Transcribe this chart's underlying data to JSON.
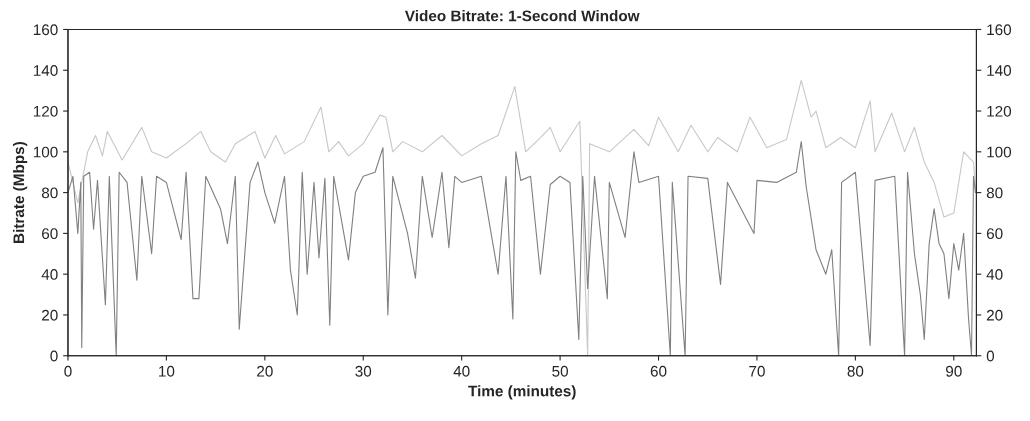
{
  "chart_data": {
    "type": "line",
    "title": "Video Bitrate: 1-Second Window",
    "xlabel": "Time (minutes)",
    "ylabel": "Bitrate (Mbps)",
    "xlim": [
      0,
      92.3
    ],
    "xticks": [
      0,
      10,
      20,
      30,
      40,
      50,
      60,
      70,
      80,
      90
    ],
    "ylim": [
      0,
      160
    ],
    "yticks": [
      0,
      20,
      40,
      60,
      80,
      100,
      120,
      140,
      160
    ],
    "y2lim": [
      0,
      160
    ],
    "y2ticks": [
      0,
      20,
      40,
      60,
      80,
      100,
      120,
      140,
      160
    ],
    "grid": false,
    "legend": false,
    "marker": "none",
    "line_style": "solid",
    "series": [
      {
        "color": "#c8c8c8",
        "x": [
          0,
          1,
          2,
          2.8,
          3.5,
          4,
          5.5,
          7.5,
          8.5,
          10,
          12,
          13.5,
          14.5,
          16,
          17,
          19,
          20,
          21.1,
          22,
          24,
          25.7,
          26.5,
          27.5,
          28.5,
          30,
          31.7,
          32.3,
          33,
          34,
          36,
          38,
          40,
          42,
          43.7,
          45.4,
          46.5,
          48,
          49,
          50,
          52,
          52.8,
          53,
          55,
          57.5,
          59,
          60,
          62,
          63.3,
          65,
          66,
          68,
          69.3,
          71,
          73,
          74.5,
          75.5,
          76,
          77,
          78.5,
          80,
          81.5,
          82,
          83.7,
          85,
          86,
          87,
          88,
          89,
          90,
          91,
          92,
          92.2
        ],
        "values": [
          95,
          75,
          100,
          108,
          98,
          110,
          96,
          112,
          100,
          97,
          104,
          110,
          100,
          95,
          104,
          110,
          97,
          108,
          99,
          105,
          122,
          100,
          105,
          98,
          104,
          118,
          117,
          100,
          105,
          100,
          108,
          98,
          104,
          108,
          132,
          100,
          107,
          112,
          100,
          115,
          0,
          104,
          100,
          111,
          103,
          117,
          100,
          113,
          100,
          107,
          100,
          117,
          102,
          106,
          135,
          117,
          120,
          102,
          107,
          102,
          125,
          100,
          119,
          100,
          112,
          95,
          85,
          68,
          70,
          100,
          95,
          82
        ]
      },
      {
        "color": "#808080",
        "x": [
          0,
          0.5,
          1.0,
          1.3,
          1.4,
          1.6,
          2.2,
          2.6,
          3,
          3.8,
          4.2,
          4.9,
          5.2,
          6,
          7,
          7.5,
          8.5,
          9,
          10,
          11.5,
          12,
          12.7,
          13.3,
          14,
          15.5,
          16.2,
          17,
          17.4,
          18.5,
          19.3,
          20,
          21,
          22,
          22.6,
          23.3,
          23.8,
          24.3,
          25,
          25.5,
          26.1,
          26.6,
          27,
          28.5,
          29.2,
          30,
          31.2,
          32,
          32.5,
          33,
          34.5,
          35.3,
          36,
          37,
          38,
          38.7,
          39.3,
          40,
          42,
          43.7,
          44.5,
          45.2,
          45.5,
          46,
          47,
          48,
          49,
          50,
          51,
          51.9,
          52.3,
          52.8,
          53.5,
          54.8,
          55,
          56.6,
          57.5,
          58,
          60,
          61.2,
          61.4,
          62.7,
          63,
          65,
          66.3,
          67,
          69.7,
          70,
          72,
          74,
          74.5,
          75,
          76,
          77,
          77.6,
          78.3,
          78.6,
          80,
          81.5,
          82,
          84,
          85,
          85.3,
          86,
          86.6,
          87,
          87.5,
          88,
          88.5,
          89,
          89.5,
          90,
          90.5,
          91,
          91.5,
          91.8,
          92,
          92.2
        ],
        "values": [
          80,
          88,
          60,
          85,
          4,
          88,
          90,
          62,
          86,
          25,
          88,
          0,
          90,
          85,
          37,
          88,
          50,
          88,
          85,
          57,
          90,
          28,
          28,
          88,
          72,
          55,
          88,
          13,
          85,
          95,
          80,
          65,
          88,
          42,
          20,
          90,
          40,
          85,
          48,
          87,
          15,
          88,
          47,
          80,
          88,
          90,
          102,
          20,
          88,
          60,
          38,
          88,
          58,
          90,
          53,
          88,
          85,
          88,
          40,
          88,
          18,
          100,
          86,
          88,
          40,
          84,
          88,
          85,
          8,
          88,
          33,
          88,
          28,
          85,
          58,
          100,
          85,
          88,
          0,
          85,
          0,
          88,
          87,
          35,
          85,
          60,
          86,
          85,
          90,
          105,
          83,
          52,
          40,
          52,
          0,
          85,
          90,
          5,
          86,
          88,
          0,
          90,
          50,
          30,
          8,
          55,
          72,
          55,
          50,
          28,
          55,
          42,
          60,
          18,
          0,
          88,
          80
        ]
      }
    ]
  }
}
